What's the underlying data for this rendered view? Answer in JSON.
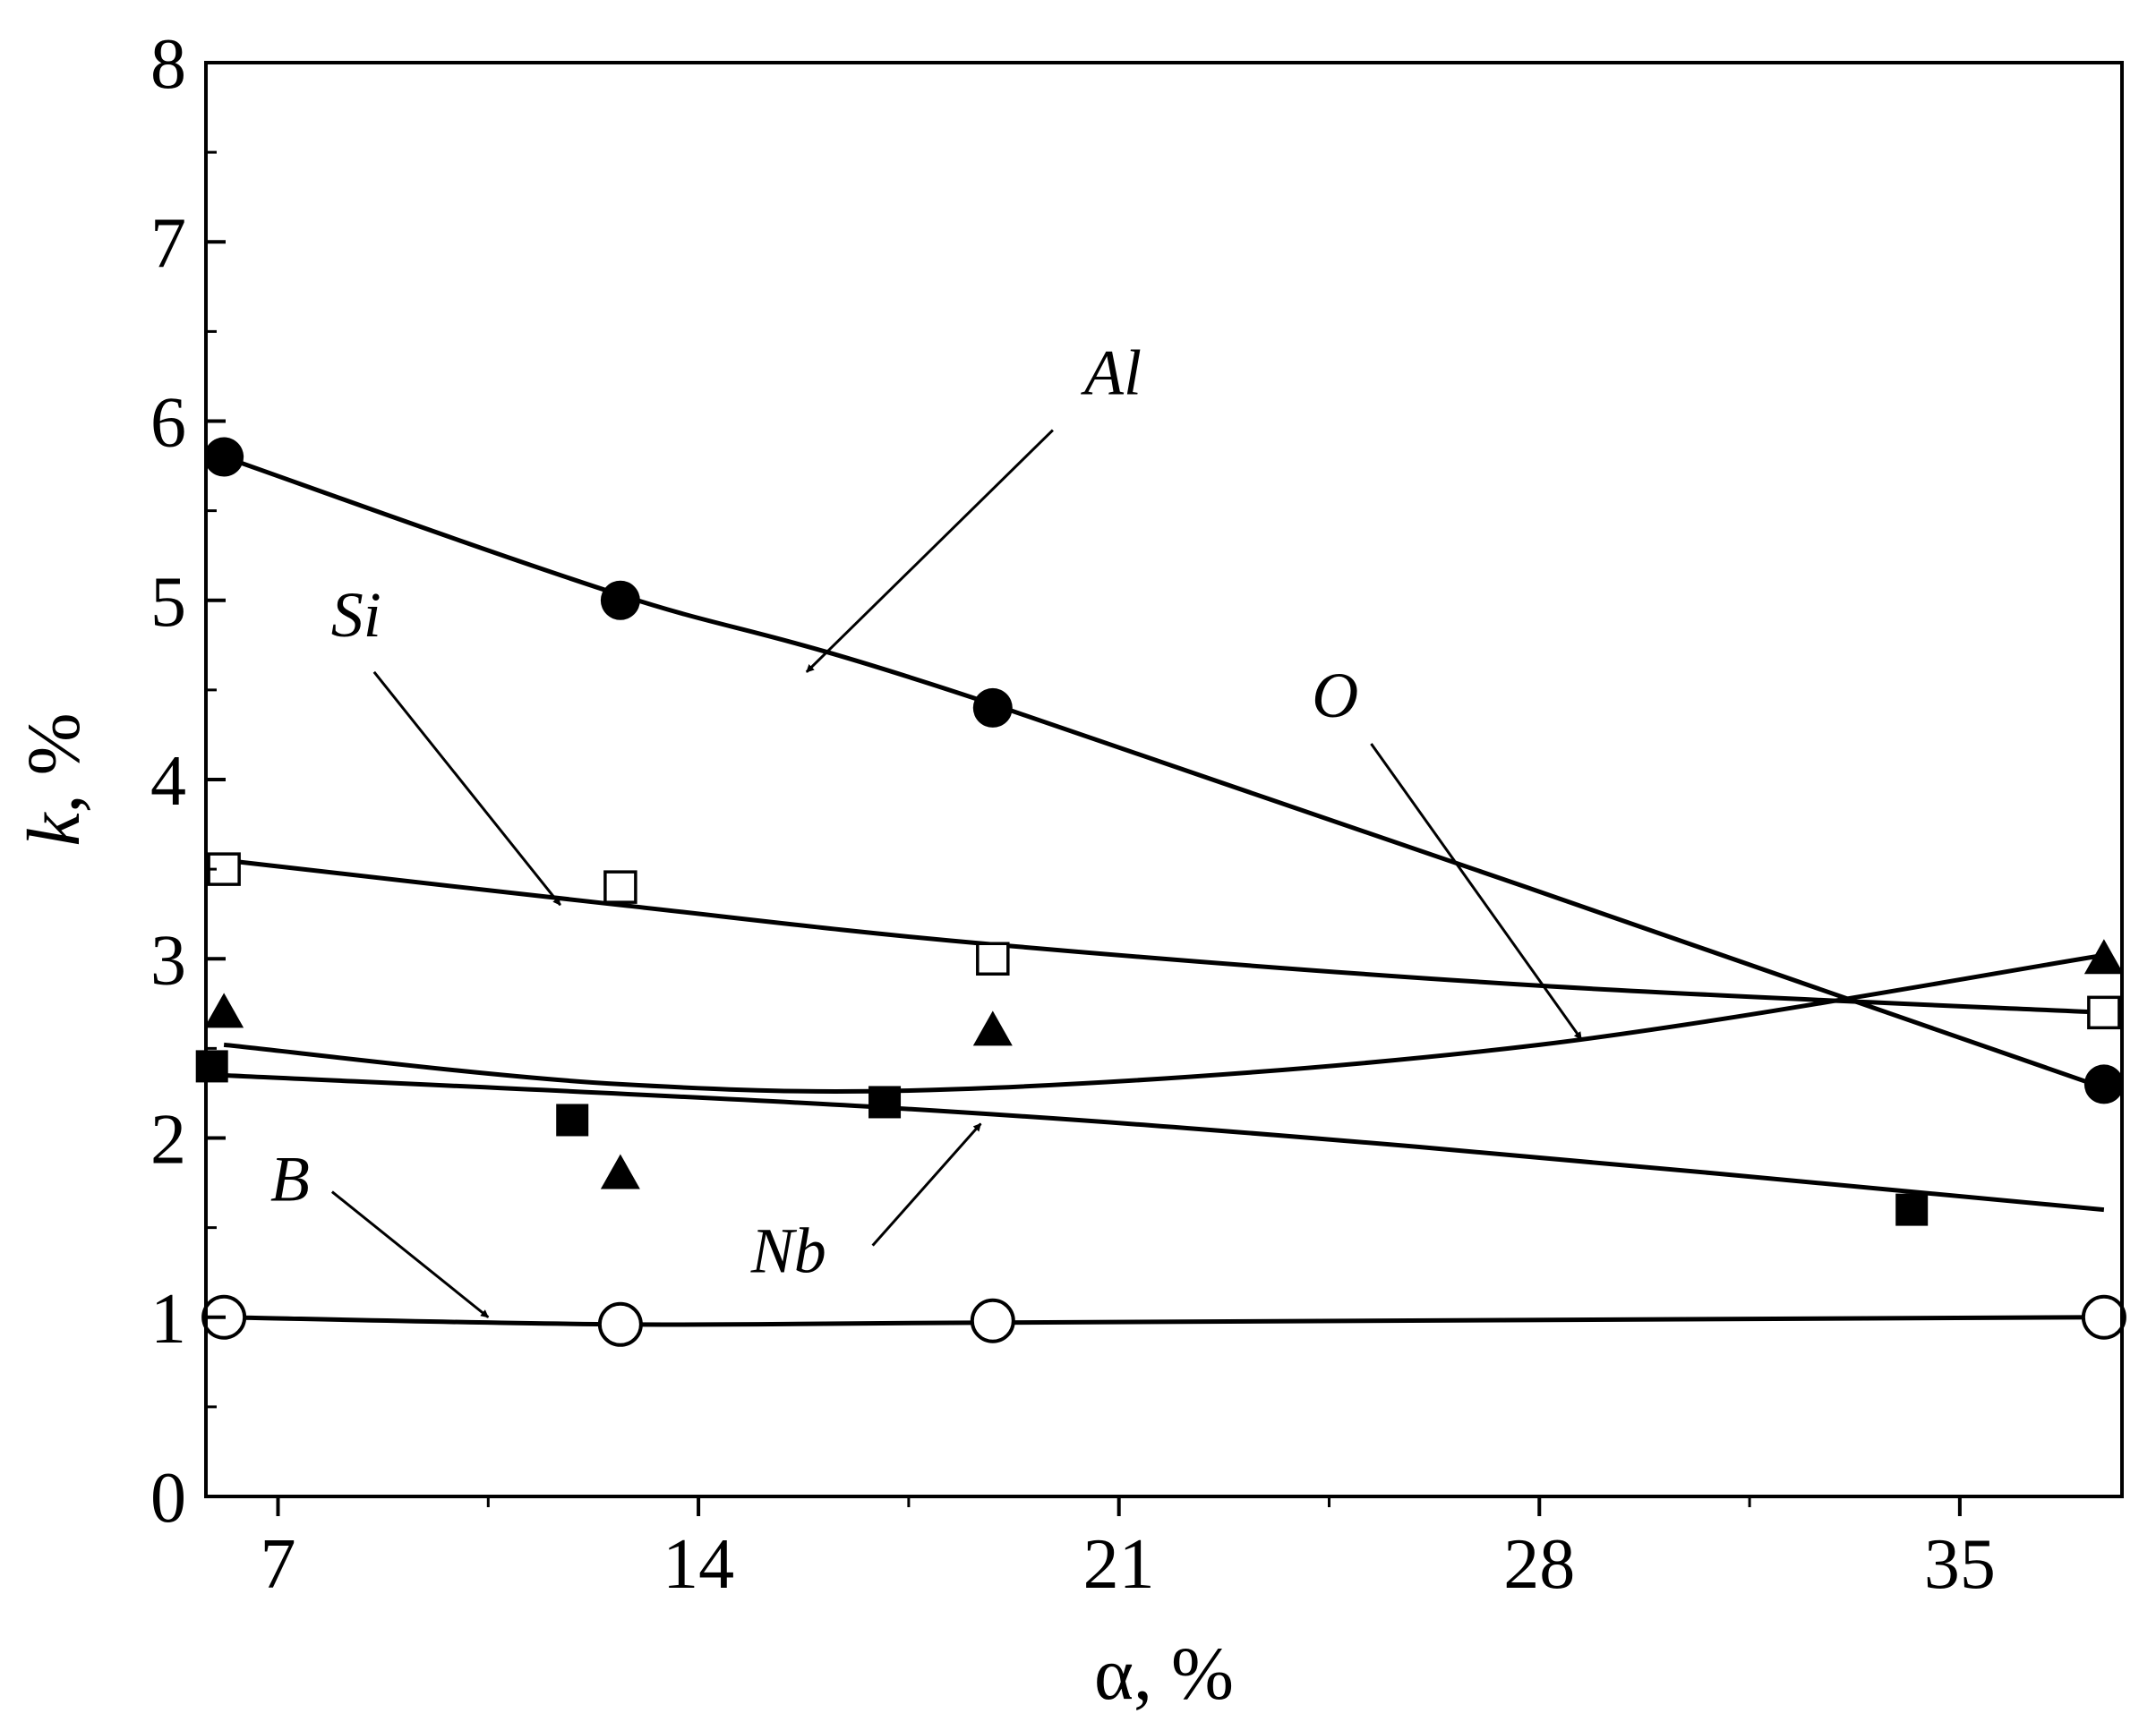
{
  "chart_data": {
    "type": "scatter",
    "x_axis": {
      "title_symbol": "α",
      "title_rest": ", %",
      "range": [
        5.8,
        37.7
      ],
      "ticks": [
        7,
        14,
        21,
        28,
        35
      ],
      "minor_ticks": [
        10.5,
        17.5,
        24.5,
        31.5
      ]
    },
    "y_axis": {
      "title_symbol": "k",
      "title_rest": ", %",
      "range": [
        0,
        8
      ],
      "ticks": [
        0,
        1,
        2,
        3,
        4,
        5,
        6,
        7,
        8
      ]
    },
    "grid": false,
    "series": [
      {
        "name": "Al",
        "marker": "filled-circle",
        "points": [
          [
            6.1,
            5.8
          ],
          [
            12.7,
            5.0
          ],
          [
            18.9,
            4.4
          ],
          [
            37.4,
            2.3
          ]
        ],
        "fit": [
          [
            6.1,
            5.8
          ],
          [
            12.7,
            5.03
          ],
          [
            18.9,
            4.42
          ],
          [
            37.4,
            2.28
          ]
        ]
      },
      {
        "name": "Si",
        "marker": "open-square",
        "points": [
          [
            6.1,
            3.5
          ],
          [
            12.7,
            3.4
          ],
          [
            18.9,
            3.0
          ],
          [
            37.4,
            2.7
          ]
        ],
        "fit": [
          [
            6.1,
            3.55
          ],
          [
            12.7,
            3.3
          ],
          [
            18.9,
            3.08
          ],
          [
            28.0,
            2.85
          ],
          [
            37.4,
            2.7
          ]
        ]
      },
      {
        "name": "O",
        "marker": "filled-triangle",
        "points": [
          [
            6.1,
            2.7
          ],
          [
            12.7,
            1.8
          ],
          [
            18.9,
            2.6
          ],
          [
            37.4,
            3.0
          ]
        ],
        "fit": [
          [
            6.1,
            2.52
          ],
          [
            12.7,
            2.3
          ],
          [
            18.9,
            2.28
          ],
          [
            28.0,
            2.52
          ],
          [
            37.4,
            3.02
          ]
        ]
      },
      {
        "name": "Nb",
        "marker": "filled-square",
        "points": [
          [
            5.9,
            2.4
          ],
          [
            11.9,
            2.1
          ],
          [
            17.1,
            2.2
          ],
          [
            34.2,
            1.6
          ]
        ],
        "fit": [
          [
            6.1,
            2.35
          ],
          [
            17.1,
            2.17
          ],
          [
            26.0,
            1.95
          ],
          [
            37.4,
            1.6
          ]
        ]
      },
      {
        "name": "B",
        "marker": "open-circle",
        "points": [
          [
            6.1,
            1.0
          ],
          [
            12.7,
            0.96
          ],
          [
            18.9,
            0.98
          ],
          [
            37.4,
            1.0
          ]
        ],
        "fit": [
          [
            6.1,
            1.0
          ],
          [
            12.7,
            0.96
          ],
          [
            18.9,
            0.97
          ],
          [
            37.4,
            1.0
          ]
        ]
      }
    ],
    "annotations": [
      {
        "label": "Al",
        "text_at": [
          20.9,
          6.15
        ],
        "arrow_from": [
          19.9,
          5.95
        ],
        "arrow_to": [
          15.8,
          4.6
        ]
      },
      {
        "label": "Si",
        "text_at": [
          8.3,
          4.8
        ],
        "arrow_from": [
          8.6,
          4.6
        ],
        "arrow_to": [
          11.7,
          3.3
        ]
      },
      {
        "label": "O",
        "text_at": [
          24.6,
          4.35
        ],
        "arrow_from": [
          25.2,
          4.2
        ],
        "arrow_to": [
          28.7,
          2.55
        ]
      },
      {
        "label": "Nb",
        "text_at": [
          15.5,
          1.25
        ],
        "arrow_from": [
          16.9,
          1.4
        ],
        "arrow_to": [
          18.7,
          2.08
        ]
      },
      {
        "label": "B",
        "text_at": [
          7.2,
          1.65
        ],
        "arrow_from": [
          7.9,
          1.7
        ],
        "arrow_to": [
          10.5,
          1.0
        ]
      }
    ]
  }
}
